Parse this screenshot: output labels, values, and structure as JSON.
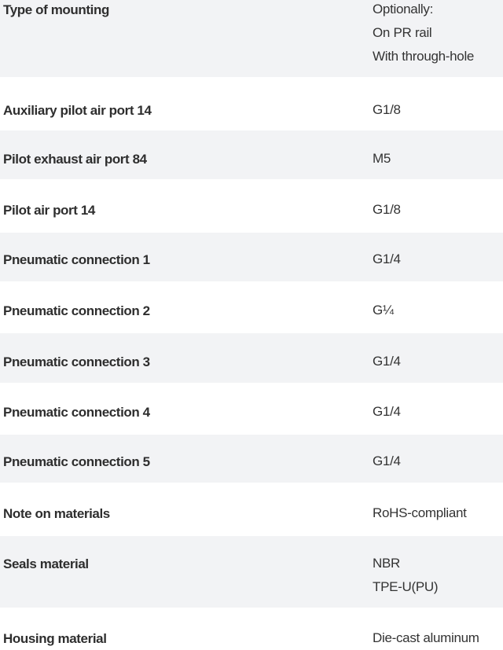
{
  "colors": {
    "row_alt_bg": "#f2f3f5",
    "row_bg": "#ffffff",
    "text": "#333333"
  },
  "rows": [
    {
      "label": "Type of mounting",
      "values": [
        "Optionally:",
        "On PR rail",
        "With through-hole"
      ]
    },
    {
      "label": "Auxiliary pilot air port 14",
      "values": [
        "G1/8"
      ]
    },
    {
      "label": "Pilot exhaust air port 84",
      "values": [
        "M5"
      ]
    },
    {
      "label": "Pilot air port 14",
      "values": [
        "G1/8"
      ]
    },
    {
      "label": "Pneumatic connection 1",
      "values": [
        "G1/4"
      ]
    },
    {
      "label": "Pneumatic connection 2",
      "values": [
        "G¼"
      ]
    },
    {
      "label": "Pneumatic connection 3",
      "values": [
        "G1/4"
      ]
    },
    {
      "label": "Pneumatic connection 4",
      "values": [
        "G1/4"
      ]
    },
    {
      "label": "Pneumatic connection 5",
      "values": [
        "G1/4"
      ]
    },
    {
      "label": "Note on materials",
      "values": [
        "RoHS-compliant"
      ]
    },
    {
      "label": "Seals material",
      "values": [
        "NBR",
        "TPE-U(PU)"
      ]
    },
    {
      "label": "Housing material",
      "values": [
        "Die-cast aluminum"
      ]
    }
  ]
}
